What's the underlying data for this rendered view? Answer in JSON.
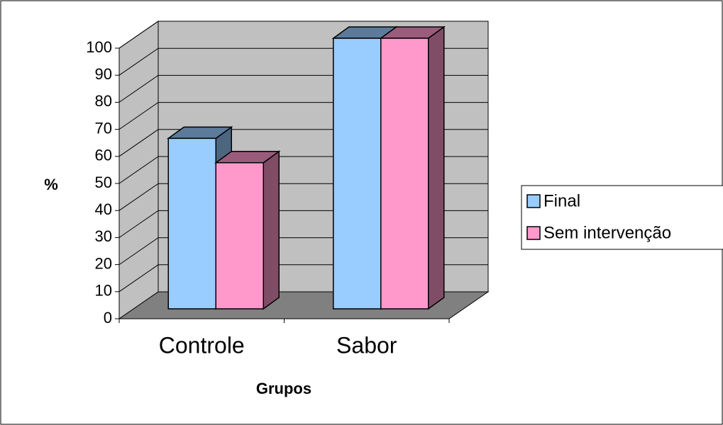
{
  "chart_data": {
    "type": "bar3d",
    "ylabel": "%",
    "xlabel": "Grupos",
    "categories": [
      "Controle",
      "Sabor"
    ],
    "series": [
      {
        "name": "Final",
        "color": "#99ccff",
        "values": [
          63,
          100
        ]
      },
      {
        "name": "Sem intervenção",
        "color": "#ff99cc",
        "values": [
          54,
          100
        ]
      }
    ],
    "ylim": [
      0,
      100
    ],
    "yticks": [
      0,
      10,
      20,
      30,
      40,
      50,
      60,
      70,
      80,
      90,
      100
    ],
    "grid": true,
    "legend": "right"
  }
}
